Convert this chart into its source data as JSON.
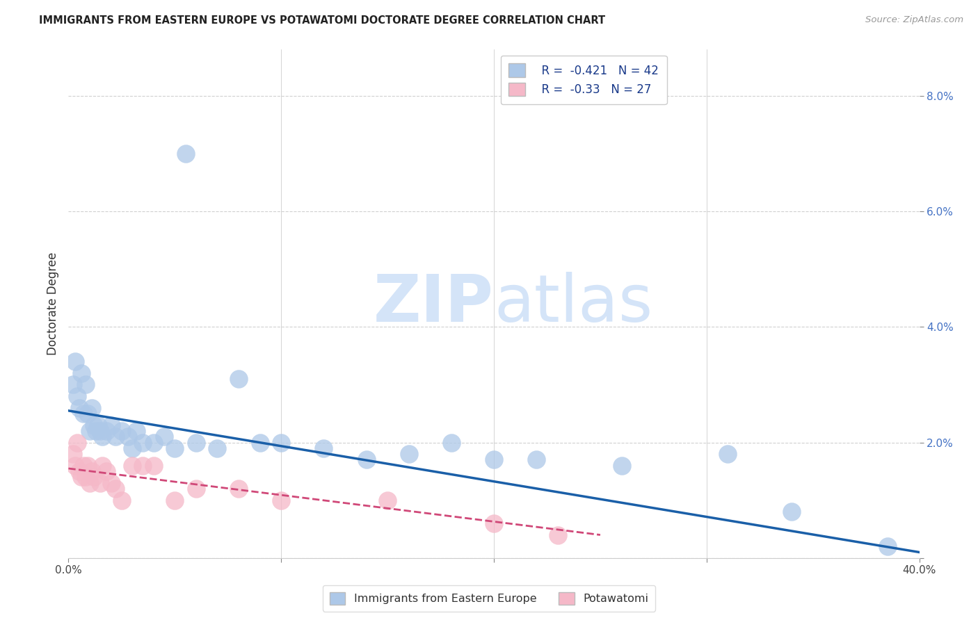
{
  "title": "IMMIGRANTS FROM EASTERN EUROPE VS POTAWATOMI DOCTORATE DEGREE CORRELATION CHART",
  "source": "Source: ZipAtlas.com",
  "ylabel": "Doctorate Degree",
  "xlim": [
    0.0,
    0.4
  ],
  "ylim": [
    0.0,
    0.088
  ],
  "xticks": [
    0.0,
    0.1,
    0.2,
    0.3,
    0.4
  ],
  "xtick_labels": [
    "0.0%",
    "",
    "",
    "",
    "40.0%"
  ],
  "yticks_right": [
    0.0,
    0.02,
    0.04,
    0.06,
    0.08
  ],
  "ytick_labels_right": [
    "",
    "2.0%",
    "4.0%",
    "6.0%",
    "8.0%"
  ],
  "blue_color": "#adc8e8",
  "blue_edge_color": "#adc8e8",
  "blue_line_color": "#1a5fa8",
  "pink_color": "#f5b8c8",
  "pink_edge_color": "#f5b8c8",
  "pink_line_color": "#d04878",
  "blue_R": -0.421,
  "blue_N": 42,
  "pink_R": -0.33,
  "pink_N": 27,
  "watermark_zip": "ZIP",
  "watermark_atlas": "atlas",
  "watermark_color": "#d4e4f8",
  "grid_color": "#d0d0d0",
  "blue_x": [
    0.002,
    0.003,
    0.004,
    0.005,
    0.006,
    0.007,
    0.008,
    0.009,
    0.01,
    0.011,
    0.012,
    0.013,
    0.014,
    0.015,
    0.016,
    0.018,
    0.02,
    0.022,
    0.025,
    0.028,
    0.03,
    0.032,
    0.035,
    0.04,
    0.045,
    0.05,
    0.055,
    0.06,
    0.07,
    0.08,
    0.09,
    0.1,
    0.12,
    0.14,
    0.16,
    0.18,
    0.2,
    0.22,
    0.26,
    0.31,
    0.34,
    0.385
  ],
  "blue_y": [
    0.03,
    0.034,
    0.028,
    0.026,
    0.032,
    0.025,
    0.03,
    0.025,
    0.022,
    0.026,
    0.023,
    0.022,
    0.023,
    0.022,
    0.021,
    0.022,
    0.023,
    0.021,
    0.022,
    0.021,
    0.019,
    0.022,
    0.02,
    0.02,
    0.021,
    0.019,
    0.07,
    0.02,
    0.019,
    0.031,
    0.02,
    0.02,
    0.019,
    0.017,
    0.018,
    0.02,
    0.017,
    0.017,
    0.016,
    0.018,
    0.008,
    0.002
  ],
  "pink_x": [
    0.002,
    0.003,
    0.004,
    0.005,
    0.006,
    0.007,
    0.008,
    0.009,
    0.01,
    0.011,
    0.012,
    0.015,
    0.016,
    0.018,
    0.02,
    0.022,
    0.025,
    0.03,
    0.035,
    0.04,
    0.05,
    0.06,
    0.08,
    0.1,
    0.15,
    0.2,
    0.23
  ],
  "pink_y": [
    0.018,
    0.016,
    0.02,
    0.015,
    0.014,
    0.016,
    0.014,
    0.016,
    0.013,
    0.015,
    0.014,
    0.013,
    0.016,
    0.015,
    0.013,
    0.012,
    0.01,
    0.016,
    0.016,
    0.016,
    0.01,
    0.012,
    0.012,
    0.01,
    0.01,
    0.006,
    0.004
  ],
  "blue_line_x0": 0.0,
  "blue_line_y0": 0.0255,
  "blue_line_x1": 0.4,
  "blue_line_y1": 0.001,
  "pink_line_x0": 0.0,
  "pink_line_y0": 0.0155,
  "pink_line_x1": 0.25,
  "pink_line_y1": 0.004
}
